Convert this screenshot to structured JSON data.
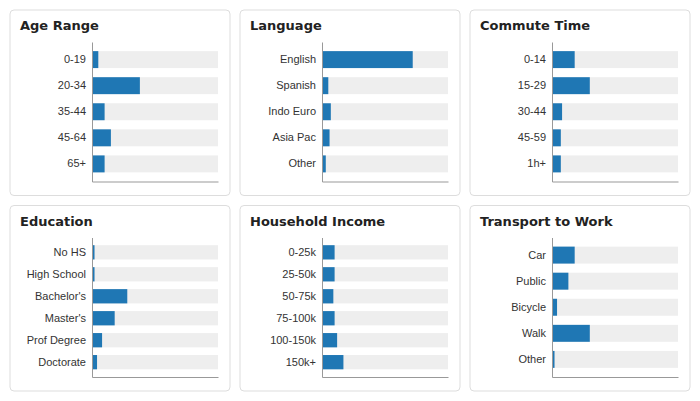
{
  "chart_data": [
    {
      "type": "bar",
      "orientation": "horizontal",
      "title": "Age Range",
      "categories": [
        "0-19",
        "20-34",
        "35-44",
        "45-64",
        "65+"
      ],
      "values": [
        0.05,
        0.38,
        0.1,
        0.15,
        0.1
      ],
      "xlim": [
        0,
        1.0
      ],
      "tick_labels": "y",
      "grid": false
    },
    {
      "type": "bar",
      "orientation": "horizontal",
      "title": "Language",
      "categories": [
        "English",
        "Spanish",
        "Indo Euro",
        "Asia Pac",
        "Other"
      ],
      "values": [
        0.72,
        0.05,
        0.07,
        0.06,
        0.03
      ],
      "xlim": [
        0,
        1.0
      ],
      "tick_labels": "y",
      "grid": false
    },
    {
      "type": "bar",
      "orientation": "horizontal",
      "title": "Commute Time",
      "categories": [
        "0-14",
        "15-29",
        "30-44",
        "45-59",
        "1h+"
      ],
      "values": [
        0.18,
        0.3,
        0.08,
        0.07,
        0.07
      ],
      "xlim": [
        0,
        1.0
      ],
      "tick_labels": "y",
      "grid": false
    },
    {
      "type": "bar",
      "orientation": "horizontal",
      "title": "Education",
      "categories": [
        "No HS",
        "High School",
        "Bachelor's",
        "Master's",
        "Prof Degree",
        "Doctorate"
      ],
      "values": [
        0.02,
        0.02,
        0.28,
        0.18,
        0.08,
        0.04
      ],
      "xlim": [
        0,
        1.0
      ],
      "tick_labels": "y",
      "grid": false
    },
    {
      "type": "bar",
      "orientation": "horizontal",
      "title": "Household Income",
      "categories": [
        "0-25k",
        "25-50k",
        "50-75k",
        "75-100k",
        "100-150k",
        "150k+"
      ],
      "values": [
        0.1,
        0.1,
        0.09,
        0.1,
        0.12,
        0.17
      ],
      "xlim": [
        0,
        1.0
      ],
      "tick_labels": "y",
      "grid": false
    },
    {
      "type": "bar",
      "orientation": "horizontal",
      "title": "Transport to Work",
      "categories": [
        "Car",
        "Public",
        "Bicycle",
        "Walk",
        "Other"
      ],
      "values": [
        0.18,
        0.13,
        0.04,
        0.3,
        0.02
      ],
      "xlim": [
        0,
        1.0
      ],
      "tick_labels": "y",
      "grid": false
    }
  ]
}
